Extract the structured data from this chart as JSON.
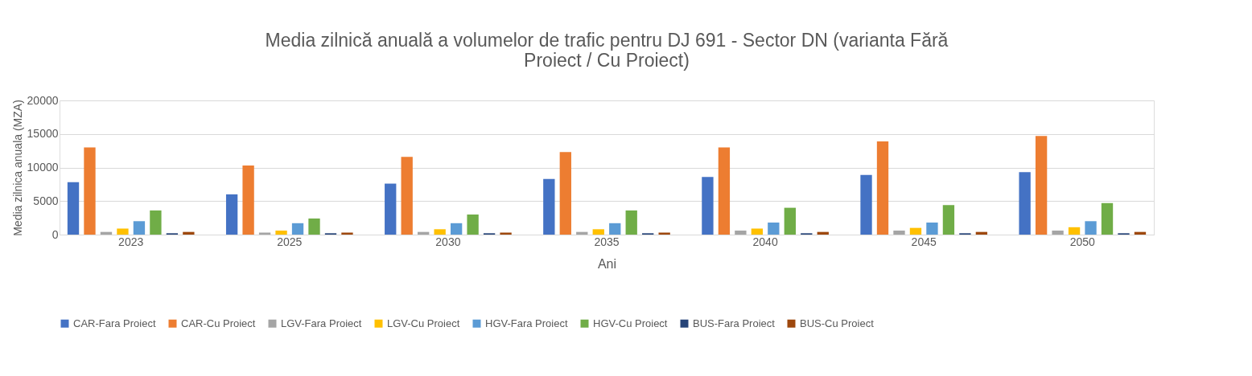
{
  "chart_data": {
    "type": "bar",
    "title": [
      "Media zilnică anuală a volumelor de trafic pentru DJ 691 - Sector DN (varianta Fără",
      "Proiect / Cu Proiect)"
    ],
    "xlabel": "Ani",
    "ylabel": "Media zilnica anuala (MZA)",
    "categories": [
      "2023",
      "2025",
      "2030",
      "2035",
      "2040",
      "2045",
      "2050"
    ],
    "series": [
      {
        "name": "CAR-Fara Proiect",
        "color": "#4472c4",
        "values": [
          7800,
          6000,
          7600,
          8300,
          8600,
          8900,
          9300
        ]
      },
      {
        "name": "CAR-Cu Proiect",
        "color": "#ed7d31",
        "values": [
          13000,
          10300,
          11600,
          12300,
          13000,
          13900,
          14700
        ]
      },
      {
        "name": "LGV-Fara Proiect",
        "color": "#a5a5a5",
        "values": [
          400,
          300,
          400,
          400,
          600,
          600,
          600
        ]
      },
      {
        "name": "LGV-Cu Proiect",
        "color": "#ffc000",
        "values": [
          900,
          600,
          800,
          800,
          900,
          1000,
          1100
        ]
      },
      {
        "name": "HGV-Fara Proiect",
        "color": "#5b9bd5",
        "values": [
          2000,
          1700,
          1700,
          1700,
          1800,
          1800,
          2000
        ]
      },
      {
        "name": "HGV-Cu Proiect",
        "color": "#70ad47",
        "values": [
          3600,
          2400,
          3000,
          3600,
          4000,
          4400,
          4700
        ]
      },
      {
        "name": "BUS-Fara Proiect",
        "color": "#264478",
        "values": [
          200,
          200,
          200,
          200,
          200,
          200,
          200
        ]
      },
      {
        "name": "BUS-Cu Proiect",
        "color": "#9e480e",
        "values": [
          400,
          300,
          300,
          300,
          400,
          400,
          400
        ]
      }
    ],
    "ylim": [
      0,
      20000
    ],
    "yticks": [
      0,
      5000,
      10000,
      15000,
      20000
    ],
    "grid": "y",
    "legend": "bottom"
  }
}
